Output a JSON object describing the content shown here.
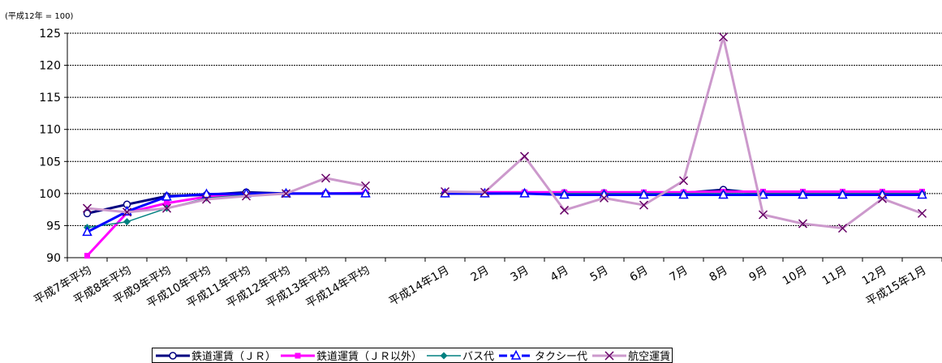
{
  "chart_data": {
    "type": "line",
    "unit_label": "(平成12年 = 100)",
    "categories": [
      "平成7年平均",
      "平成8年平均",
      "平成9年平均",
      "平成10年平均",
      "平成11年平均",
      "平成12年平均",
      "平成13年平均",
      "平成14年平均",
      "",
      "平成14年1月",
      "2月",
      "3月",
      "4月",
      "5月",
      "6月",
      "7月",
      "8月",
      "9月",
      "10月",
      "11月",
      "12月",
      "平成15年1月"
    ],
    "yticks": [
      90,
      95,
      100,
      105,
      110,
      115,
      120,
      125
    ],
    "ylim": [
      90,
      125
    ],
    "grid": "horizontal dashed",
    "legend_position": "bottom",
    "series": [
      {
        "name": "鉄道運賃（ＪＲ）",
        "color": "#000080",
        "marker": "circle",
        "values": [
          96.9,
          98.3,
          99.6,
          99.8,
          100.2,
          100.0,
          100.0,
          100.0,
          null,
          100.0,
          100.0,
          100.1,
          100.1,
          100.1,
          100.0,
          100.1,
          100.6,
          100.0,
          99.9,
          99.9,
          99.9,
          100.0
        ]
      },
      {
        "name": "鉄道運賃（ＪＲ以外）",
        "color": "#FF00FF",
        "marker": "square",
        "values": [
          90.3,
          97.0,
          98.5,
          99.5,
          99.8,
          100.0,
          100.0,
          100.1,
          null,
          100.2,
          100.2,
          100.2,
          100.2,
          100.2,
          100.2,
          100.2,
          100.3,
          100.3,
          100.3,
          100.3,
          100.3,
          100.3
        ]
      },
      {
        "name": "バス代",
        "color": "#008080",
        "marker": "diamond",
        "values": [
          94.7,
          95.6,
          97.7,
          99.3,
          99.8,
          100.0,
          100.0,
          100.0,
          null,
          100.0,
          100.0,
          100.0,
          100.0,
          100.0,
          100.0,
          100.0,
          100.0,
          100.0,
          100.0,
          100.0,
          100.0,
          100.0
        ]
      },
      {
        "name": "タクシー代",
        "color": "#0000FF",
        "marker": "triangle",
        "values": [
          94.0,
          97.2,
          99.5,
          99.9,
          100.0,
          100.0,
          100.0,
          100.0,
          null,
          100.0,
          100.0,
          100.0,
          99.8,
          99.8,
          99.8,
          99.8,
          99.8,
          99.8,
          99.8,
          99.8,
          99.8,
          99.8
        ]
      },
      {
        "name": "航空運賃",
        "color": "#CC99CC",
        "marker": "x",
        "values": [
          97.7,
          97.1,
          97.7,
          99.1,
          99.6,
          100.0,
          102.4,
          101.2,
          null,
          100.3,
          100.2,
          105.8,
          97.4,
          99.3,
          98.2,
          102.0,
          124.4,
          96.7,
          95.3,
          94.6,
          99.2,
          96.9
        ]
      }
    ]
  }
}
